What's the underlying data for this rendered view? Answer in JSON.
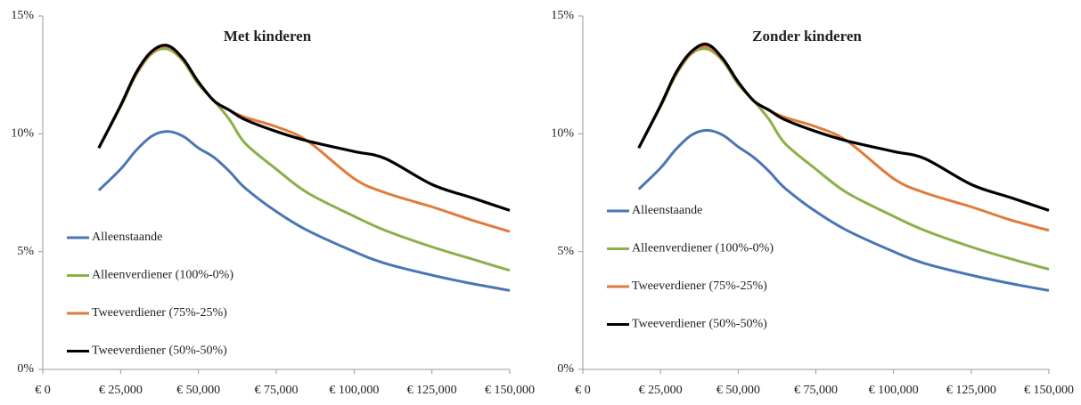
{
  "chart_data": [
    {
      "type": "line",
      "title": "Met kinderen",
      "legend": "lower left",
      "x": [
        18000,
        25000,
        30000,
        35000,
        40000,
        45000,
        50000,
        55000,
        60000,
        65000,
        75000,
        85000,
        100000,
        110000,
        125000,
        137500,
        150000
      ],
      "xlim": [
        0,
        150000
      ],
      "xticks": [
        {
          "value": 0,
          "label": "€ 0"
        },
        {
          "value": 25000,
          "label": "€ 25,000"
        },
        {
          "value": 50000,
          "label": "€ 50,000"
        },
        {
          "value": 75000,
          "label": "€ 75,000"
        },
        {
          "value": 100000,
          "label": "€ 100,000"
        },
        {
          "value": 125000,
          "label": "€ 125,000"
        },
        {
          "value": 150000,
          "label": "€ 150,000"
        }
      ],
      "ylim": [
        0,
        15
      ],
      "yticks": [
        {
          "value": 0,
          "label": "0%"
        },
        {
          "value": 5,
          "label": "5%"
        },
        {
          "value": 10,
          "label": "10%"
        },
        {
          "value": 15,
          "label": "15%"
        }
      ],
      "series": [
        {
          "name": "Alleenstaande",
          "color": "#4a76b4",
          "values": [
            7.6,
            8.5,
            9.3,
            9.9,
            10.1,
            9.9,
            9.4,
            9.0,
            8.4,
            7.7,
            6.7,
            5.9,
            5.0,
            4.5,
            4.0,
            3.65,
            3.35
          ]
        },
        {
          "name": "Alleenverdiener (100%-0%)",
          "color": "#8bb04a",
          "values": [
            9.4,
            11.15,
            12.5,
            13.4,
            13.6,
            13.1,
            12.1,
            11.4,
            10.6,
            9.6,
            8.5,
            7.5,
            6.5,
            5.9,
            5.2,
            4.7,
            4.2
          ]
        },
        {
          "name": "Tweeverdiener (75%-25%)",
          "color": "#e07b39",
          "values": [
            9.4,
            11.2,
            12.55,
            13.45,
            13.7,
            13.15,
            12.2,
            11.4,
            11.0,
            10.7,
            10.3,
            9.7,
            8.1,
            7.5,
            6.9,
            6.35,
            5.85
          ]
        },
        {
          "name": "Tweeverdiener (50%-50%)",
          "color": "#000000",
          "values": [
            9.4,
            11.2,
            12.6,
            13.5,
            13.75,
            13.2,
            12.2,
            11.4,
            11.0,
            10.6,
            10.1,
            9.7,
            9.25,
            8.95,
            7.85,
            7.3,
            6.75
          ]
        }
      ]
    },
    {
      "type": "line",
      "title": "Zonder kinderen",
      "legend": "center left",
      "x": [
        18000,
        25000,
        30000,
        35000,
        40000,
        45000,
        50000,
        55000,
        60000,
        65000,
        75000,
        85000,
        100000,
        110000,
        125000,
        137500,
        150000
      ],
      "xlim": [
        0,
        150000
      ],
      "xticks": [
        {
          "value": 0,
          "label": "€ 0"
        },
        {
          "value": 25000,
          "label": "€ 25,000"
        },
        {
          "value": 50000,
          "label": "€ 50,000"
        },
        {
          "value": 75000,
          "label": "€ 75,000"
        },
        {
          "value": 100000,
          "label": "€ 100,000"
        },
        {
          "value": 125000,
          "label": "€ 125,000"
        },
        {
          "value": 150000,
          "label": "€ 150,000"
        }
      ],
      "ylim": [
        0,
        15
      ],
      "yticks": [
        {
          "value": 0,
          "label": "0%"
        },
        {
          "value": 5,
          "label": "5%"
        },
        {
          "value": 10,
          "label": "10%"
        },
        {
          "value": 15,
          "label": "15%"
        }
      ],
      "series": [
        {
          "name": "Alleenstaande",
          "color": "#4a76b4",
          "values": [
            7.65,
            8.55,
            9.35,
            9.95,
            10.15,
            9.95,
            9.45,
            9.0,
            8.4,
            7.7,
            6.7,
            5.9,
            5.0,
            4.5,
            4.0,
            3.65,
            3.35
          ]
        },
        {
          "name": "Alleenverdiener (100%-0%)",
          "color": "#8bb04a",
          "values": [
            9.4,
            11.15,
            12.5,
            13.4,
            13.6,
            13.1,
            12.1,
            11.4,
            10.6,
            9.6,
            8.5,
            7.5,
            6.5,
            5.9,
            5.2,
            4.7,
            4.25
          ]
        },
        {
          "name": "Tweeverdiener (75%-25%)",
          "color": "#e07b39",
          "values": [
            9.4,
            11.2,
            12.55,
            13.45,
            13.7,
            13.15,
            12.2,
            11.4,
            11.0,
            10.7,
            10.3,
            9.7,
            8.1,
            7.5,
            6.9,
            6.35,
            5.9
          ]
        },
        {
          "name": "Tweeverdiener (50%-50%)",
          "color": "#000000",
          "values": [
            9.4,
            11.2,
            12.6,
            13.5,
            13.8,
            13.2,
            12.2,
            11.4,
            11.0,
            10.6,
            10.1,
            9.7,
            9.25,
            8.95,
            7.85,
            7.3,
            6.75
          ]
        }
      ]
    }
  ]
}
